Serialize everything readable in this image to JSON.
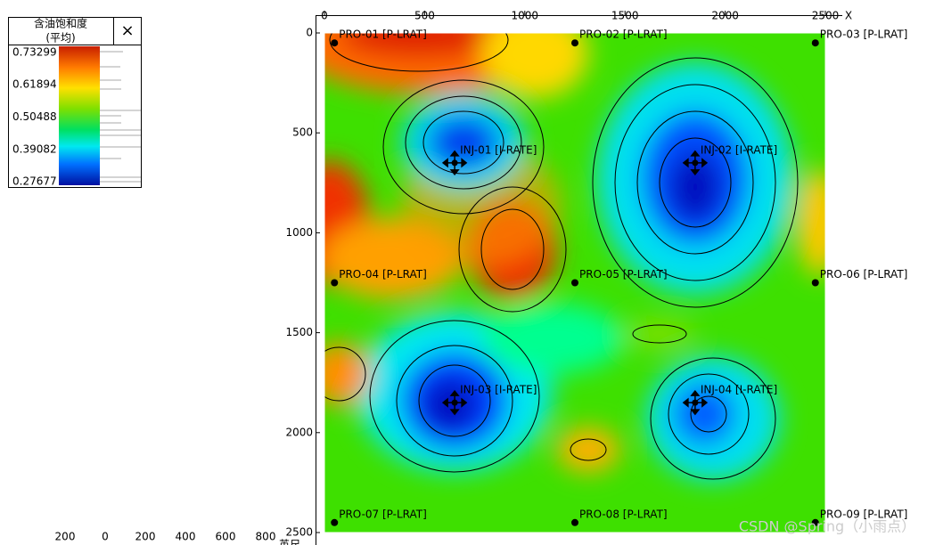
{
  "legend": {
    "title": "含油饱和度",
    "subtitle": "(平均)",
    "close": "×",
    "labels": [
      0.73299,
      0.61894,
      0.50488,
      0.39082,
      0.27677
    ]
  },
  "map": {
    "x_axis_label": "X",
    "xlim": [
      0,
      2500
    ],
    "ylim": [
      0,
      2500
    ],
    "xticks": [
      0,
      500,
      1000,
      1500,
      2000,
      2500
    ],
    "yticks": [
      0,
      500,
      1000,
      1500,
      2000,
      2500
    ],
    "producers": [
      {
        "label": "PRO-01 [P-LRAT]",
        "x": 50,
        "y": 50
      },
      {
        "label": "PRO-02 [P-LRAT]",
        "x": 1250,
        "y": 50
      },
      {
        "label": "PRO-03 [P-LRAT]",
        "x": 2450,
        "y": 50
      },
      {
        "label": "PRO-04 [P-LRAT]",
        "x": 50,
        "y": 1250
      },
      {
        "label": "PRO-05 [P-LRAT]",
        "x": 1250,
        "y": 1250
      },
      {
        "label": "PRO-06 [P-LRAT]",
        "x": 2450,
        "y": 1250
      },
      {
        "label": "PRO-07 [P-LRAT]",
        "x": 50,
        "y": 2450
      },
      {
        "label": "PRO-08 [P-LRAT]",
        "x": 1250,
        "y": 2450
      },
      {
        "label": "PRO-09 [P-LRAT]",
        "x": 2450,
        "y": 2450
      }
    ],
    "injectors": [
      {
        "label": "INJ-01 [I-RATE]",
        "x": 650,
        "y": 650
      },
      {
        "label": "INJ-02 [I-RATE]",
        "x": 1850,
        "y": 650
      },
      {
        "label": "INJ-03 [I-RATE]",
        "x": 650,
        "y": 1850
      },
      {
        "label": "INJ-04 [I-RATE]",
        "x": 1850,
        "y": 1850
      }
    ]
  },
  "scale_bar": {
    "labels": [
      "200",
      "0",
      "200",
      "400",
      "600",
      "800"
    ],
    "unit": "英尺"
  },
  "watermark": "CSDN @Spring（小雨点）"
}
